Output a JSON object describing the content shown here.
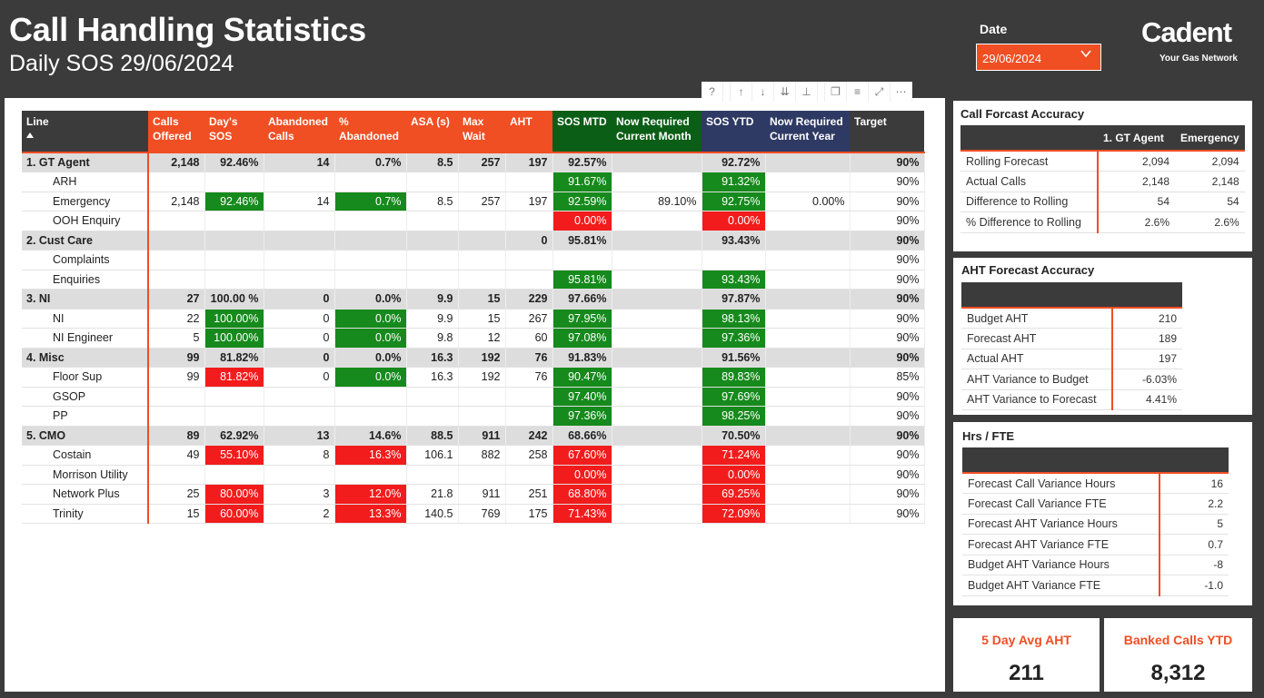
{
  "header": {
    "title": "Call Handling Statistics",
    "subtitle": "Daily SOS  29/06/2024",
    "date_label": "Date",
    "date_value": "29/06/2024",
    "logo": "Cadent",
    "tagline": "Your Gas Network"
  },
  "toolbar": {
    "icons": [
      "help-icon",
      "drill-up-icon",
      "drill-down-icon",
      "expand-all-icon",
      "drill-hierarchy-icon",
      "copy-icon",
      "filter-icon",
      "focus-mode-icon",
      "more-options-icon"
    ]
  },
  "table": {
    "columns": [
      "Line",
      "Calls Offered",
      "Day's SOS",
      "Abandoned Calls",
      "% Abandoned",
      "ASA (s)",
      "Max Wait",
      "AHT",
      "SOS MTD",
      "Now Required Current Month",
      "SOS YTD",
      "Now Required Current Year",
      "Target"
    ],
    "rows": [
      {
        "type": "group",
        "cells": [
          "1. GT Agent",
          "2,148",
          "92.46%",
          "14",
          "0.7%",
          "8.5",
          "257",
          "197",
          "92.57%",
          "",
          "92.72%",
          "",
          "90%"
        ]
      },
      {
        "type": "sub",
        "cells": [
          "ARH",
          "",
          "",
          "",
          "",
          "",
          "",
          "",
          "91.67%",
          "",
          "91.32%",
          "",
          "90%"
        ],
        "status": {
          "8": "g",
          "10": "g"
        }
      },
      {
        "type": "sub",
        "cells": [
          "Emergency",
          "2,148",
          "92.46%",
          "14",
          "0.7%",
          "8.5",
          "257",
          "197",
          "92.59%",
          "89.10%",
          "92.75%",
          "0.00%",
          "90%"
        ],
        "status": {
          "2": "g",
          "4": "g",
          "8": "g",
          "10": "g"
        }
      },
      {
        "type": "sub",
        "cells": [
          "OOH Enquiry",
          "",
          "",
          "",
          "",
          "",
          "",
          "",
          "0.00%",
          "",
          "0.00%",
          "",
          "90%"
        ],
        "status": {
          "8": "r",
          "10": "r"
        }
      },
      {
        "type": "group",
        "cells": [
          "2. Cust Care",
          "",
          "",
          "",
          "",
          "",
          "",
          "0",
          "95.81%",
          "",
          "93.43%",
          "",
          "90%"
        ]
      },
      {
        "type": "sub",
        "cells": [
          "Complaints",
          "",
          "",
          "",
          "",
          "",
          "",
          "",
          "",
          "",
          "",
          "",
          "90%"
        ]
      },
      {
        "type": "sub",
        "cells": [
          "Enquiries",
          "",
          "",
          "",
          "",
          "",
          "",
          "",
          "95.81%",
          "",
          "93.43%",
          "",
          "90%"
        ],
        "status": {
          "8": "g",
          "10": "g"
        }
      },
      {
        "type": "group",
        "cells": [
          "3. NI",
          "27",
          "100.00 %",
          "0",
          "0.0%",
          "9.9",
          "15",
          "229",
          "97.66%",
          "",
          "97.87%",
          "",
          "90%"
        ]
      },
      {
        "type": "sub",
        "cells": [
          "NI",
          "22",
          "100.00%",
          "0",
          "0.0%",
          "9.9",
          "15",
          "267",
          "97.95%",
          "",
          "98.13%",
          "",
          "90%"
        ],
        "status": {
          "2": "g",
          "4": "g",
          "8": "g",
          "10": "g"
        }
      },
      {
        "type": "sub",
        "cells": [
          "NI Engineer",
          "5",
          "100.00%",
          "0",
          "0.0%",
          "9.8",
          "12",
          "60",
          "97.08%",
          "",
          "97.36%",
          "",
          "90%"
        ],
        "status": {
          "2": "g",
          "4": "g",
          "8": "g",
          "10": "g"
        }
      },
      {
        "type": "group",
        "cells": [
          "4. Misc",
          "99",
          "81.82%",
          "0",
          "0.0%",
          "16.3",
          "192",
          "76",
          "91.83%",
          "",
          "91.56%",
          "",
          "90%"
        ]
      },
      {
        "type": "sub",
        "cells": [
          "Floor Sup",
          "99",
          "81.82%",
          "0",
          "0.0%",
          "16.3",
          "192",
          "76",
          "90.47%",
          "",
          "89.83%",
          "",
          "85%"
        ],
        "status": {
          "2": "r",
          "4": "g",
          "8": "g",
          "10": "g"
        }
      },
      {
        "type": "sub",
        "cells": [
          "GSOP",
          "",
          "",
          "",
          "",
          "",
          "",
          "",
          "97.40%",
          "",
          "97.69%",
          "",
          "90%"
        ],
        "status": {
          "8": "g",
          "10": "g"
        }
      },
      {
        "type": "sub",
        "cells": [
          "PP",
          "",
          "",
          "",
          "",
          "",
          "",
          "",
          "97.36%",
          "",
          "98.25%",
          "",
          "90%"
        ],
        "status": {
          "8": "g",
          "10": "g"
        }
      },
      {
        "type": "group",
        "cells": [
          "5. CMO",
          "89",
          "62.92%",
          "13",
          "14.6%",
          "88.5",
          "911",
          "242",
          "68.66%",
          "",
          "70.50%",
          "",
          "90%"
        ]
      },
      {
        "type": "sub",
        "cells": [
          "Costain",
          "49",
          "55.10%",
          "8",
          "16.3%",
          "106.1",
          "882",
          "258",
          "67.60%",
          "",
          "71.24%",
          "",
          "90%"
        ],
        "status": {
          "2": "r",
          "4": "r",
          "8": "r",
          "10": "r"
        }
      },
      {
        "type": "sub",
        "cells": [
          "Morrison Utility",
          "",
          "",
          "",
          "",
          "",
          "",
          "",
          "0.00%",
          "",
          "0.00%",
          "",
          "90%"
        ],
        "status": {
          "8": "r",
          "10": "r"
        }
      },
      {
        "type": "sub",
        "cells": [
          "Network Plus",
          "25",
          "80.00%",
          "3",
          "12.0%",
          "21.8",
          "911",
          "251",
          "68.80%",
          "",
          "69.25%",
          "",
          "90%"
        ],
        "status": {
          "2": "r",
          "4": "r",
          "8": "r",
          "10": "r"
        }
      },
      {
        "type": "sub",
        "cells": [
          "Trinity",
          "15",
          "60.00%",
          "2",
          "13.3%",
          "140.5",
          "769",
          "175",
          "71.43%",
          "",
          "72.09%",
          "",
          "90%"
        ],
        "status": {
          "2": "r",
          "4": "r",
          "8": "r",
          "10": "r"
        }
      }
    ]
  },
  "call_forecast": {
    "title": "Call Forcast Accuracy",
    "headers": [
      "",
      "1. GT Agent",
      "Emergency"
    ],
    "rows": [
      [
        "Rolling Forecast",
        "2,094",
        "2,094"
      ],
      [
        "Actual Calls",
        "2,148",
        "2,148"
      ],
      [
        "Difference to Rolling",
        "54",
        "54"
      ],
      [
        "% Difference to Rolling",
        "2.6%",
        "2.6%"
      ]
    ]
  },
  "aht_forecast": {
    "title": "AHT Forecast Accuracy",
    "rows": [
      [
        "Budget AHT",
        "210"
      ],
      [
        "Forecast AHT",
        "189"
      ],
      [
        "Actual AHT",
        "197"
      ],
      [
        "AHT Variance to Budget",
        "-6.03%"
      ],
      [
        "AHT Variance to Forecast",
        "4.41%"
      ]
    ]
  },
  "hrs_fte": {
    "title": "Hrs / FTE",
    "rows": [
      [
        "Forecast Call Variance Hours",
        "16"
      ],
      [
        "Forecast Call Variance FTE",
        "2.2"
      ],
      [
        "Forecast AHT Variance Hours",
        "5"
      ],
      [
        "Forecast AHT Variance FTE",
        "0.7"
      ],
      [
        "Budget AHT Variance Hours",
        "-8"
      ],
      [
        "Budget AHT Variance FTE",
        "-1.0"
      ]
    ]
  },
  "kpis": [
    {
      "label": "5 Day Avg AHT",
      "value": "211"
    },
    {
      "label": "Banked Calls YTD",
      "value": "8,312"
    }
  ]
}
